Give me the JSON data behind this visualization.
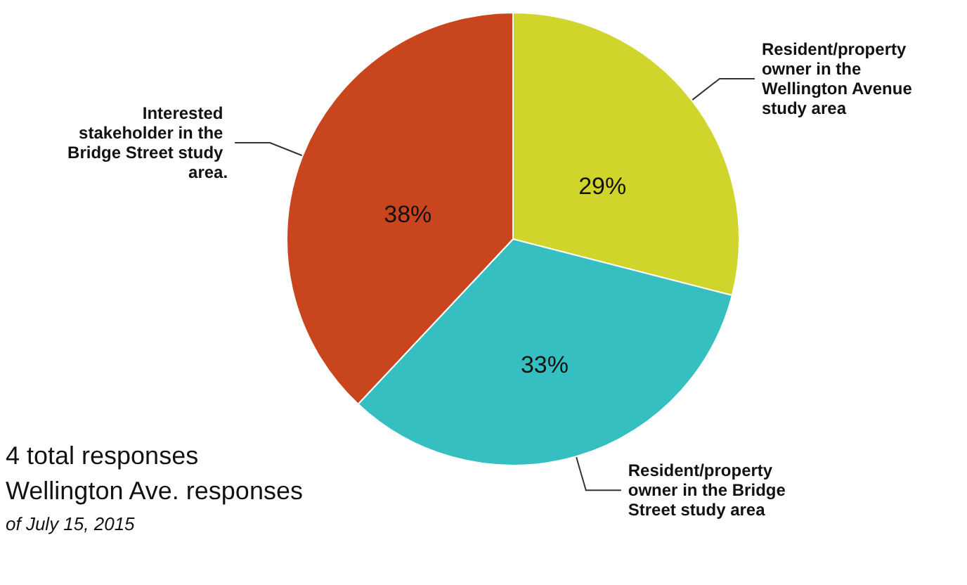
{
  "chart_data": {
    "type": "pie",
    "categories": [
      "Resident/property owner in the Wellington Avenue study area",
      "Resident/property owner in the Bridge Street study area",
      "Interested stakeholder in the Bridge Street study area."
    ],
    "values": [
      29,
      33,
      38
    ],
    "colors": [
      "#cfd52a",
      "#35bfc1",
      "#c9451d"
    ],
    "value_labels": [
      "29%",
      "33%",
      "38%"
    ],
    "legend": false,
    "annotations": [
      "4 total responses",
      "Wellington Ave. responses",
      "of July 15, 2015"
    ]
  }
}
